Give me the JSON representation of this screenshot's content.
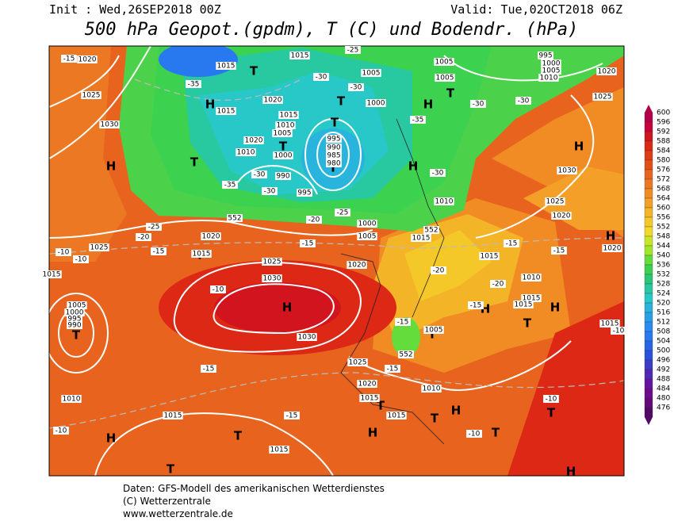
{
  "header": {
    "init": "Init : Wed,26SEP2018 00Z",
    "valid": "Valid: Tue,02OCT2018 06Z",
    "title": "500 hPa Geopot.(gpdm), T (C) und Bodendr. (hPa)"
  },
  "footer": {
    "line1": "Daten: GFS-Modell des amerikanischen Wetterdienstes",
    "line2": "(C) Wetterzentrale",
    "line3": "www.wetterzentrale.de"
  },
  "colorbar": {
    "values": [
      600,
      596,
      592,
      588,
      584,
      580,
      576,
      572,
      568,
      564,
      560,
      556,
      552,
      548,
      544,
      540,
      536,
      532,
      528,
      524,
      520,
      516,
      512,
      508,
      504,
      500,
      496,
      492,
      488,
      484,
      480,
      476
    ],
    "colors": [
      "#b4004a",
      "#c8003c",
      "#d2141e",
      "#dc2814",
      "#e03c14",
      "#e45014",
      "#e8641e",
      "#ec7823",
      "#f08c23",
      "#f4a028",
      "#f4b428",
      "#f4c828",
      "#f0dc28",
      "#c8e628",
      "#a0e628",
      "#64dc3c",
      "#3cd250",
      "#28c878",
      "#28c8a0",
      "#28c8c8",
      "#28b4dc",
      "#28a0e6",
      "#288cf0",
      "#2878f0",
      "#2864e6",
      "#2850dc",
      "#3c3cc8",
      "#5028b4",
      "#6414a0",
      "#6e0a8c",
      "#640a78",
      "#500a64"
    ]
  },
  "map_labels": [
    "H",
    "H",
    "H",
    "H",
    "H",
    "H",
    "H",
    "H",
    "H",
    "H",
    "H",
    "H",
    "H",
    "T",
    "T",
    "T",
    "T",
    "T",
    "T",
    "T",
    "T",
    "T",
    "T",
    "T",
    "T",
    "T",
    "T",
    "T",
    "T",
    "T",
    "1020",
    "1015",
    "1015",
    "1005",
    "995",
    "1000",
    "1005",
    "1010",
    "1020",
    "1025",
    "1025",
    "1030",
    "1015",
    "1020",
    "1015",
    "1010",
    "1005",
    "1000",
    "995",
    "990",
    "985",
    "980",
    "1000",
    "1005",
    "1005",
    "1020",
    "1010",
    "990",
    "995",
    "1030",
    "1025",
    "1020",
    "1010",
    "1000",
    "1005",
    "1015",
    "1020",
    "1025",
    "1015",
    "1015",
    "1025",
    "1030",
    "1020",
    "1015",
    "1010",
    "1015",
    "1015",
    "1015",
    "1020",
    "1030",
    "1005",
    "1000",
    "995",
    "990",
    "1025",
    "1020",
    "1015",
    "1010",
    "1005",
    "1015",
    "1015",
    "1010",
    "1015",
    "-15",
    "-25",
    "-35",
    "-30",
    "-30",
    "-30",
    "-30",
    "-35",
    "-35",
    "-30",
    "-30",
    "-30",
    "-25",
    "-20",
    "-25",
    "-20",
    "-15",
    "-15",
    "-15",
    "-15",
    "-10",
    "-10",
    "-10",
    "-20",
    "-20",
    "-15",
    "-15",
    "-15",
    "-15",
    "-15",
    "-10",
    "-10",
    "-10",
    "-10",
    "552",
    "552",
    "552"
  ]
}
